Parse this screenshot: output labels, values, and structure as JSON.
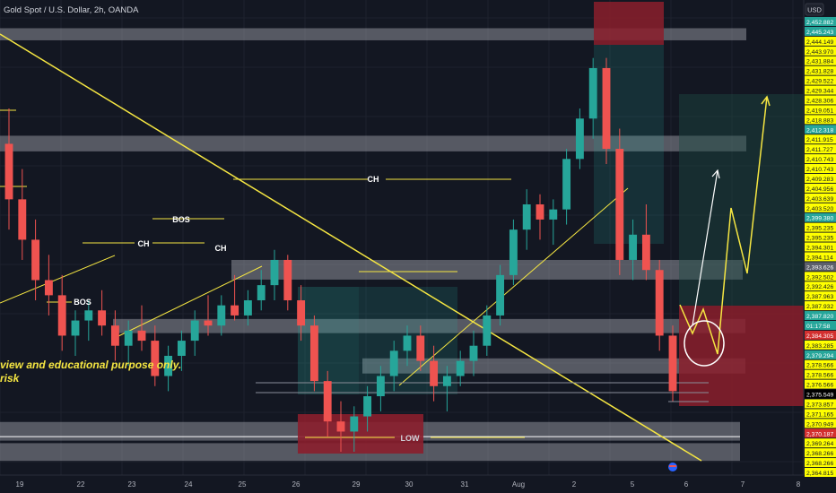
{
  "header": {
    "symbol_title": "Gold Spot / U.S. Dollar, 2h, OANDA",
    "currency": "USD"
  },
  "colors": {
    "background": "#131722",
    "up": "#26a69a",
    "down": "#ef5350",
    "zone": "#b2b5be",
    "trendline": "#f5e642",
    "target_box": "#1c4a42",
    "stop_box": "#8b1e2c",
    "axis_highlight": "#ffff00",
    "forecast_path": "#f5e642",
    "forecast_arrow": "#ffffff"
  },
  "annotations": {
    "disclaimer_line1": "view and educational purpose only.",
    "disclaimer_line2": "risk",
    "labels": [
      "BOS",
      "CH",
      "BOS",
      "CH",
      "CH",
      "LOW"
    ]
  },
  "price_axis": {
    "ticks": [
      "2,452.882",
      "2,445.243",
      "2,444.149",
      "2,443.970",
      "2,431.884",
      "2,431.828",
      "2,429.522",
      "2,429.344",
      "2,428.306",
      "2,419.051",
      "2,418.883",
      "2,412.318",
      "2,411.915",
      "2,411.727",
      "2,410.743",
      "2,410.743",
      "2,409.283",
      "2,404.956",
      "2,403.639",
      "2,403.520",
      "2,399.380",
      "2,395.235",
      "2,395.235",
      "2,394.301",
      "2,394.114",
      "2,393.626",
      "2,392.502",
      "2,392.426",
      "2,387.963",
      "2,387.932",
      "2,387.820",
      "01:17:58",
      "2,384.305",
      "2,383.285",
      "2,379.294",
      "2,378.566",
      "2,378.566",
      "2,376.566",
      "2,375.549",
      "2,373.857",
      "2,371.165",
      "2,370.949",
      "2,370.187",
      "2,369.264",
      "2,368.266",
      "2,368.266",
      "2,364.815"
    ],
    "highlighted": [
      "2,452.882",
      "2,445.243",
      "2,412.318",
      "2,399.380",
      "2,379.294"
    ],
    "dark_highlighted": [
      "2,375.549"
    ],
    "red_highlighted": [
      "2,384.305",
      "2,370.187"
    ],
    "grey_highlighted": [
      "2,393.626"
    ],
    "green_highlighted": [
      "2,387.820"
    ]
  },
  "time_axis": {
    "ticks": [
      "19",
      "22",
      "23",
      "24",
      "25",
      "26",
      "29",
      "30",
      "31",
      "Aug",
      "2",
      "5",
      "6",
      "7",
      "8"
    ]
  },
  "chart_data": {
    "type": "candlestick",
    "title": "Gold Spot / U.S. Dollar, 2h, OANDA",
    "ylabel": "USD",
    "y_range": [
      2364.8,
      2455.0
    ],
    "x_ticks": [
      "19",
      "22",
      "23",
      "24",
      "25",
      "26",
      "29",
      "30",
      "31",
      "Aug",
      "2",
      "5",
      "6",
      "7",
      "8"
    ],
    "candles": [
      [
        2429,
        2436,
        2412,
        2418
      ],
      [
        2418,
        2424,
        2406,
        2410
      ],
      [
        2410,
        2414,
        2398,
        2402
      ],
      [
        2402,
        2407,
        2395,
        2399
      ],
      [
        2399,
        2403,
        2388,
        2391
      ],
      [
        2391,
        2396,
        2387,
        2394
      ],
      [
        2394,
        2398,
        2390,
        2396
      ],
      [
        2396,
        2400,
        2391,
        2393
      ],
      [
        2393,
        2396,
        2386,
        2389
      ],
      [
        2389,
        2394,
        2385,
        2392
      ],
      [
        2392,
        2397,
        2388,
        2390
      ],
      [
        2390,
        2393,
        2381,
        2383
      ],
      [
        2383,
        2389,
        2380,
        2387
      ],
      [
        2387,
        2392,
        2384,
        2390
      ],
      [
        2390,
        2396,
        2387,
        2394
      ],
      [
        2394,
        2399,
        2391,
        2393
      ],
      [
        2393,
        2399,
        2391,
        2397
      ],
      [
        2397,
        2403,
        2394,
        2395
      ],
      [
        2395,
        2400,
        2393,
        2398
      ],
      [
        2398,
        2404,
        2396,
        2401
      ],
      [
        2401,
        2408,
        2398,
        2406
      ],
      [
        2406,
        2407,
        2396,
        2398
      ],
      [
        2398,
        2401,
        2390,
        2393
      ],
      [
        2393,
        2395,
        2380,
        2382
      ],
      [
        2382,
        2384,
        2371,
        2374
      ],
      [
        2374,
        2378,
        2368,
        2372
      ],
      [
        2372,
        2377,
        2368,
        2375
      ],
      [
        2375,
        2381,
        2372,
        2379
      ],
      [
        2379,
        2385,
        2376,
        2383
      ],
      [
        2383,
        2390,
        2380,
        2388
      ],
      [
        2388,
        2393,
        2385,
        2391
      ],
      [
        2391,
        2393,
        2384,
        2386
      ],
      [
        2386,
        2389,
        2378,
        2381
      ],
      [
        2381,
        2385,
        2376,
        2383
      ],
      [
        2383,
        2388,
        2381,
        2386
      ],
      [
        2386,
        2392,
        2383,
        2389
      ],
      [
        2389,
        2397,
        2387,
        2395
      ],
      [
        2395,
        2405,
        2393,
        2403
      ],
      [
        2403,
        2414,
        2401,
        2412
      ],
      [
        2412,
        2420,
        2408,
        2417
      ],
      [
        2417,
        2419,
        2410,
        2414
      ],
      [
        2414,
        2418,
        2409,
        2416
      ],
      [
        2416,
        2428,
        2413,
        2426
      ],
      [
        2426,
        2436,
        2424,
        2434
      ],
      [
        2434,
        2446,
        2430,
        2444
      ],
      [
        2444,
        2446,
        2425,
        2428
      ],
      [
        2428,
        2432,
        2403,
        2406
      ],
      [
        2406,
        2414,
        2402,
        2411
      ],
      [
        2411,
        2417,
        2402,
        2404
      ],
      [
        2404,
        2406,
        2388,
        2391
      ],
      [
        2391,
        2393,
        2378,
        2380
      ]
    ],
    "zones": [
      {
        "price_low": 2449.5,
        "price_high": 2451.9
      },
      {
        "price_low": 2427.5,
        "price_high": 2430.6
      },
      {
        "price_low": 2402.1,
        "price_high": 2406.0
      },
      {
        "price_low": 2391.5,
        "price_high": 2394.3
      },
      {
        "price_low": 2383.5,
        "price_high": 2386.5
      },
      {
        "price_low": 2370.2,
        "price_high": 2373.9
      },
      {
        "price_low": 2366.2,
        "price_high": 2369.7
      }
    ],
    "target_level": 2429.3,
    "stop_level": 2375.5
  }
}
